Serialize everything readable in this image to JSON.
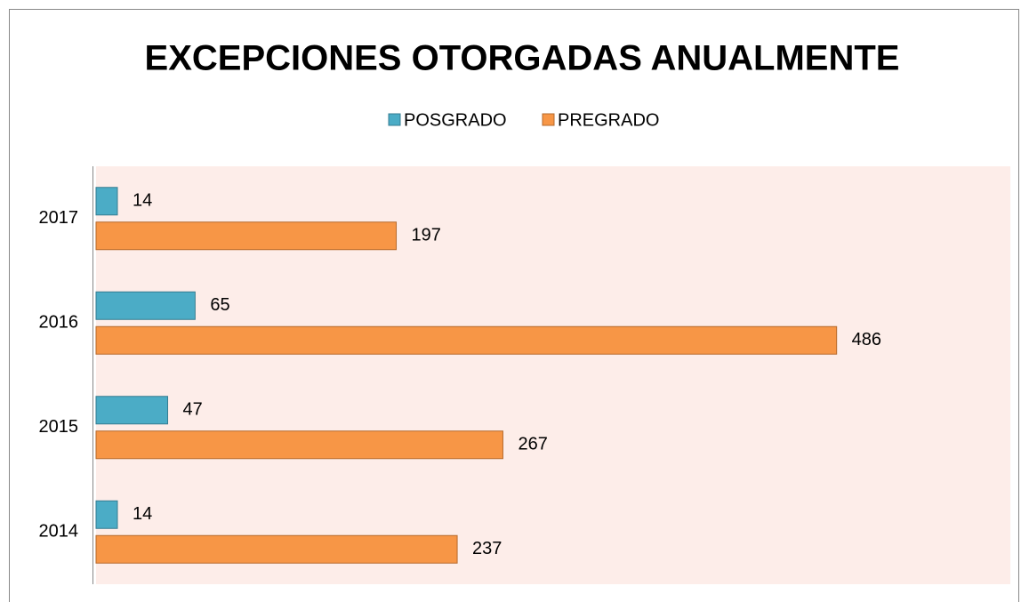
{
  "chart_data": {
    "type": "hbar",
    "title": "EXCEPCIONES OTORGADAS ANUALMENTE",
    "categories": [
      "2014",
      "2015",
      "2016",
      "2017"
    ],
    "series": [
      {
        "name": "POSGRADO",
        "color": "#4bacc6",
        "values": [
          14,
          47,
          65,
          14
        ]
      },
      {
        "name": "PREGRADO",
        "color": "#f79646",
        "values": [
          237,
          267,
          486,
          197
        ]
      }
    ],
    "xlim": [
      0,
      600
    ],
    "legend": "top"
  }
}
